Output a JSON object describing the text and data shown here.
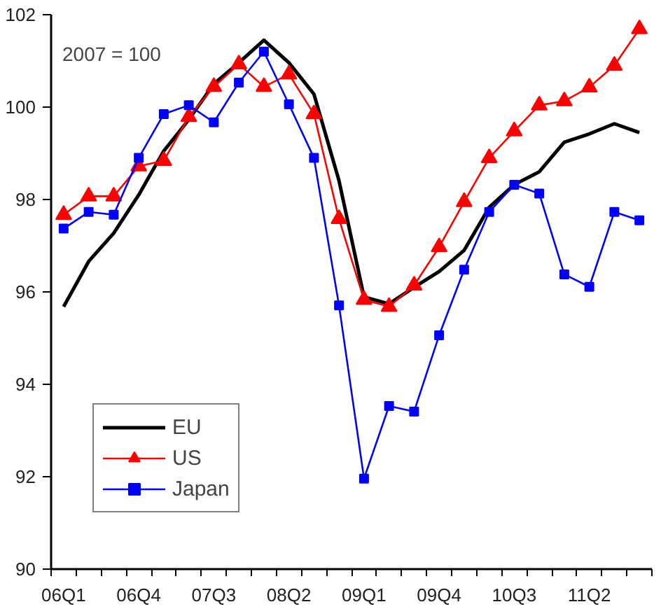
{
  "chart_data": {
    "type": "line",
    "categories": [
      "06Q1",
      null,
      null,
      "06Q4",
      null,
      null,
      "07Q3",
      null,
      null,
      "08Q2",
      null,
      null,
      "09Q1",
      null,
      null,
      "09Q4",
      null,
      null,
      "10Q3",
      null,
      null,
      "11Q2",
      null,
      null
    ],
    "series": [
      {
        "name": "EU",
        "color": "#000000",
        "marker": "none",
        "values": [
          95.68,
          96.66,
          97.27,
          98.1,
          99.05,
          99.73,
          100.5,
          100.96,
          101.45,
          100.96,
          100.28,
          98.41,
          95.89,
          95.74,
          96.1,
          96.44,
          96.9,
          97.83,
          98.32,
          98.6,
          99.24,
          99.42,
          99.64,
          99.45
        ]
      },
      {
        "name": "US",
        "color": "#ff0000",
        "marker": "triangle",
        "values": [
          97.67,
          98.07,
          98.07,
          98.72,
          98.84,
          99.79,
          100.44,
          100.93,
          100.44,
          100.71,
          99.85,
          97.58,
          95.83,
          95.68,
          96.14,
          96.97,
          97.95,
          98.9,
          99.48,
          100.04,
          100.13,
          100.43,
          100.9,
          101.69
        ]
      },
      {
        "name": "Japan",
        "color": "#0000ff",
        "marker": "square",
        "values": [
          97.37,
          97.73,
          97.67,
          98.9,
          99.85,
          100.04,
          99.67,
          100.53,
          101.2,
          100.06,
          98.9,
          95.71,
          91.96,
          93.53,
          93.41,
          95.06,
          96.48,
          97.73,
          98.32,
          98.13,
          96.38,
          96.11,
          97.73,
          97.55
        ]
      }
    ],
    "ylim": [
      90,
      102
    ],
    "yticks": [
      90,
      92,
      94,
      96,
      98,
      100,
      102
    ],
    "grid": false,
    "legend": "bottom left",
    "annotations": [
      "2007 = 100"
    ]
  }
}
